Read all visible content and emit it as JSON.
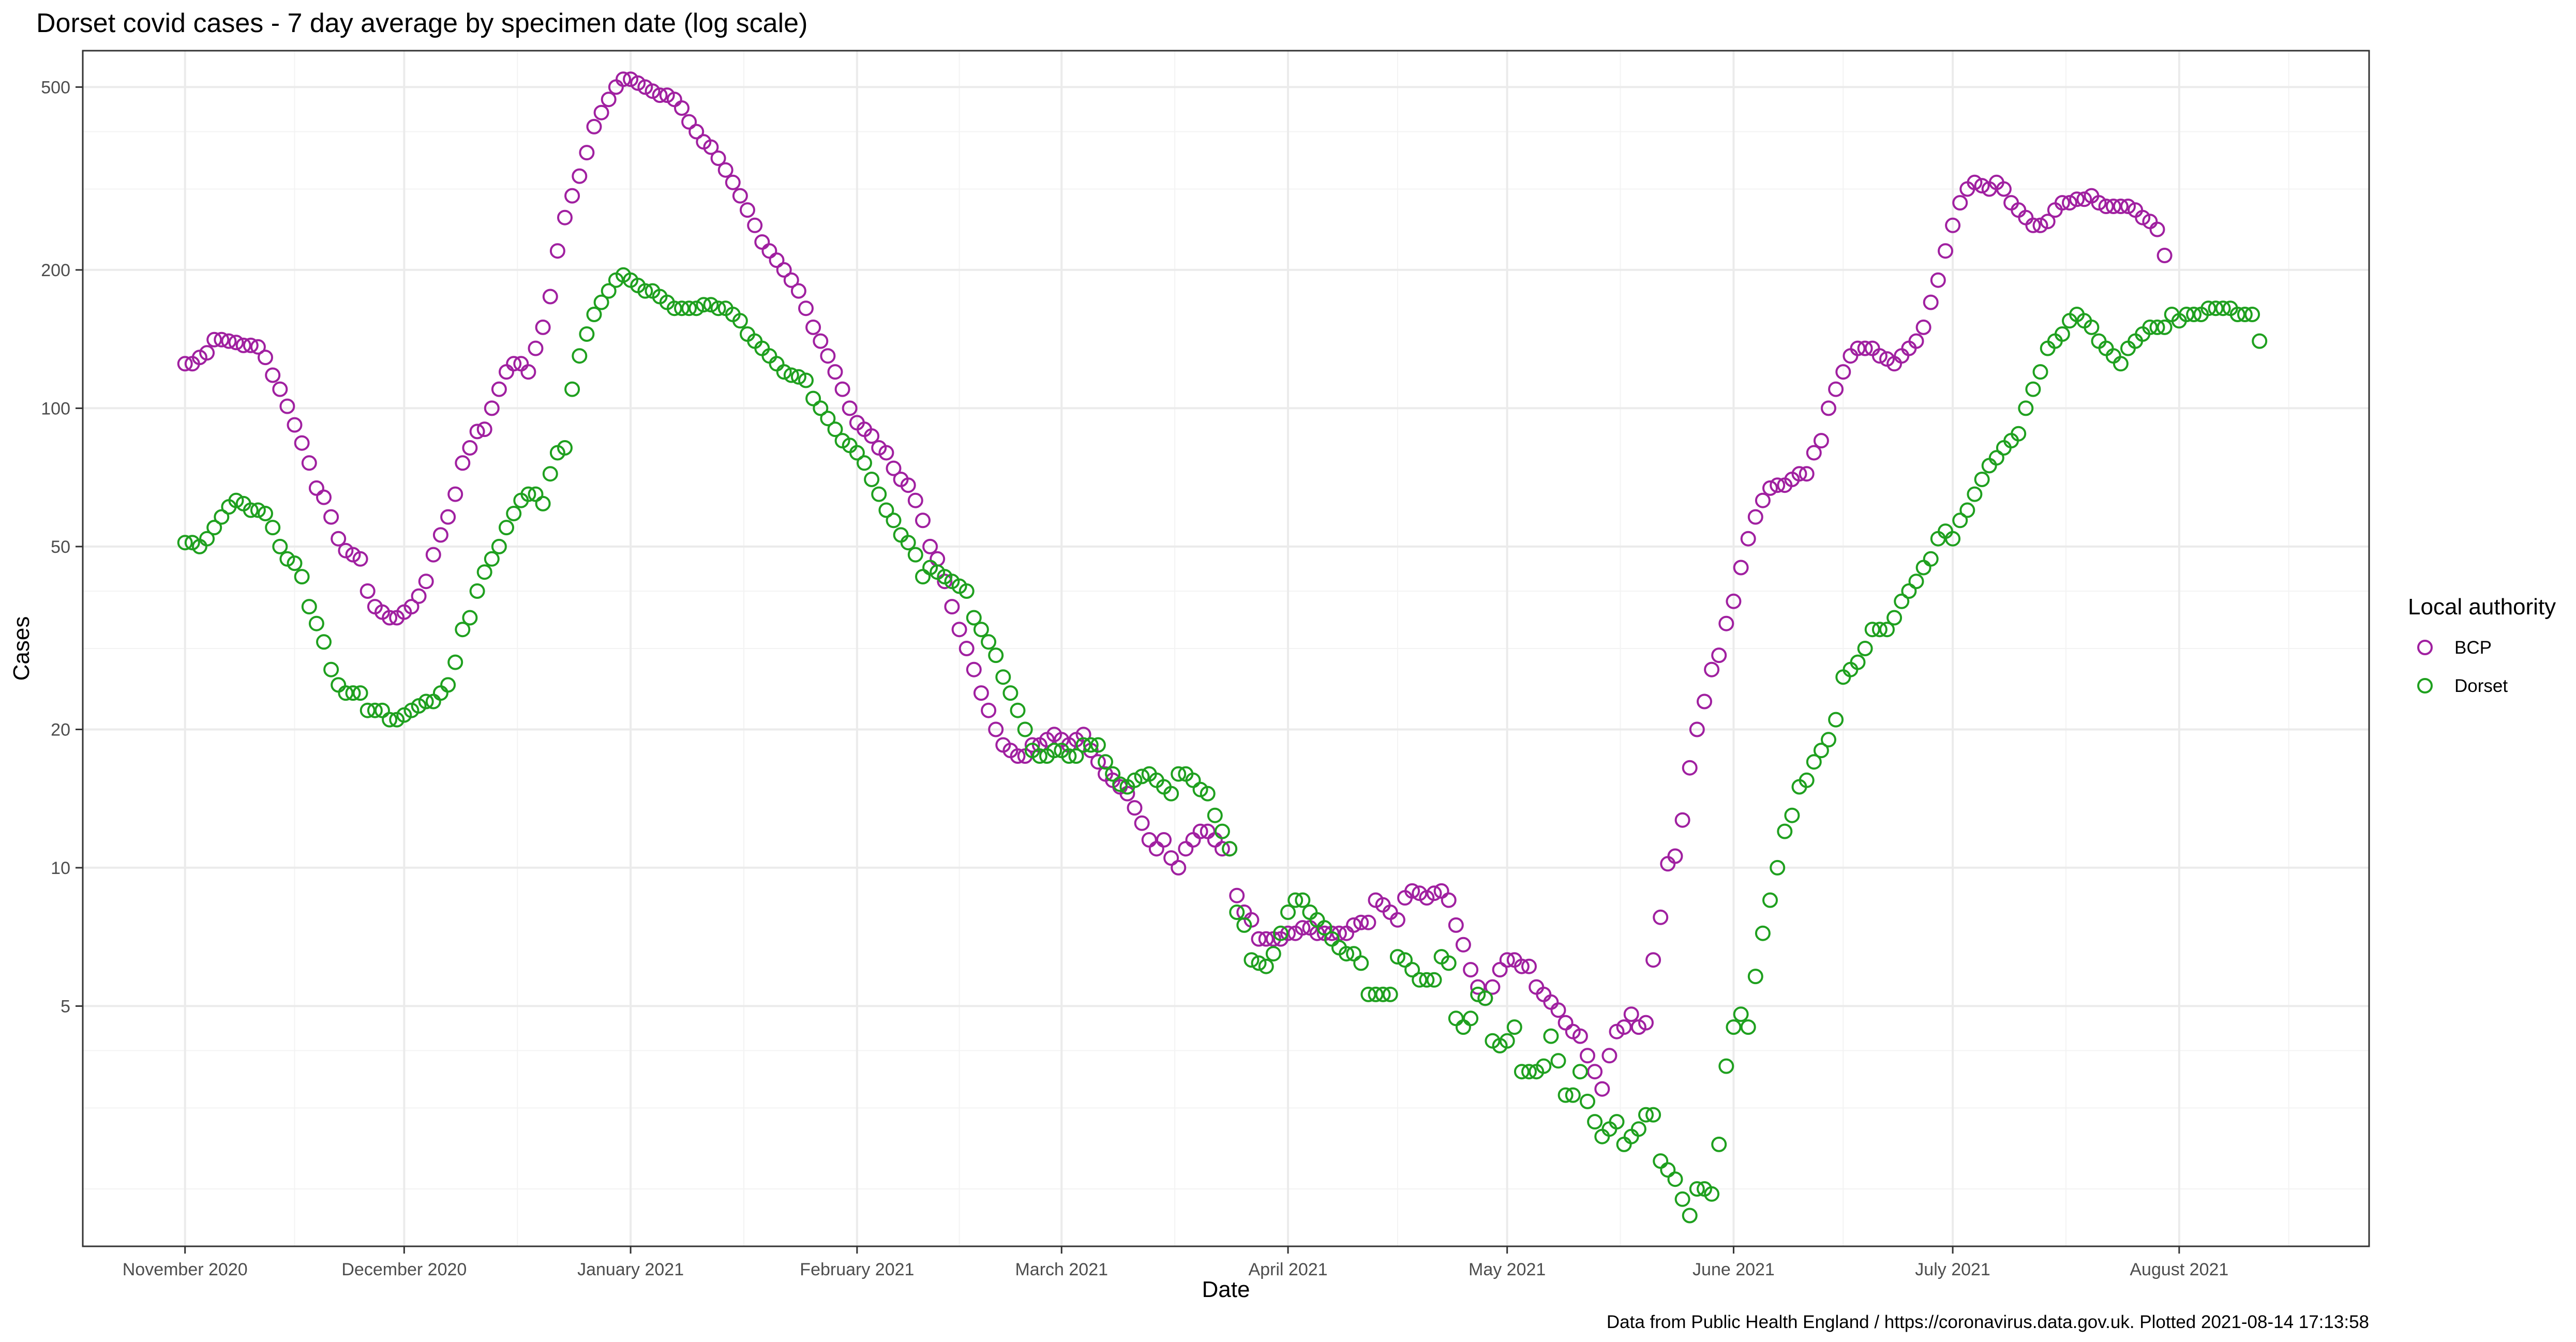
{
  "colors": {
    "BCP": "#A020A0",
    "Dorset": "#1FA01F",
    "grid_major": "#ebebeb",
    "grid_minor": "#f3f3f3",
    "panel_border": "#333333",
    "tick_text": "#4d4d4d"
  },
  "chart_data": {
    "type": "scatter",
    "title": "Dorset covid cases - 7 day average by specimen date (log scale)",
    "xlabel": "Date",
    "ylabel": "Cases",
    "caption": "Data from Public Health England / https://coronavirus.data.gov.uk. Plotted 2021-08-14 17:13:58",
    "y_scale": "log",
    "ylim": [
      1.5,
      600
    ],
    "xlim": [
      "2020-10-18",
      "2021-08-27"
    ],
    "grid": true,
    "legend_position": "right",
    "legend_title": "Local authority",
    "x_ticks": [
      {
        "date": "2020-11-01",
        "label": "November 2020"
      },
      {
        "date": "2020-12-01",
        "label": "December 2020"
      },
      {
        "date": "2021-01-01",
        "label": "January 2021"
      },
      {
        "date": "2021-02-01",
        "label": "February 2021"
      },
      {
        "date": "2021-03-01",
        "label": "March 2021"
      },
      {
        "date": "2021-04-01",
        "label": "April 2021"
      },
      {
        "date": "2021-05-01",
        "label": "May 2021"
      },
      {
        "date": "2021-06-01",
        "label": "June 2021"
      },
      {
        "date": "2021-07-01",
        "label": "July 2021"
      },
      {
        "date": "2021-08-01",
        "label": "August 2021"
      }
    ],
    "y_ticks": [
      {
        "value": 5,
        "label": "5"
      },
      {
        "value": 10,
        "label": "10"
      },
      {
        "value": 20,
        "label": "20"
      },
      {
        "value": 50,
        "label": "50"
      },
      {
        "value": 100,
        "label": "100"
      },
      {
        "value": 200,
        "label": "200"
      },
      {
        "value": 500,
        "label": "500"
      }
    ],
    "y_minor_ticks": [
      2,
      3,
      4,
      30,
      40,
      300,
      400
    ],
    "x_start": "2020-11-01",
    "series": [
      {
        "name": "BCP",
        "values": [
          125,
          125,
          129,
          132,
          141,
          141,
          140,
          139,
          137,
          137,
          136,
          129,
          118,
          110,
          101,
          92,
          84,
          76,
          67,
          64,
          58,
          52,
          49,
          48,
          47,
          40,
          37,
          36,
          35,
          35,
          36,
          37,
          39,
          42,
          48,
          53,
          58,
          65,
          76,
          82,
          89,
          90,
          100,
          110,
          120,
          125,
          125,
          120,
          135,
          150,
          175,
          220,
          260,
          290,
          320,
          360,
          410,
          440,
          470,
          500,
          520,
          520,
          510,
          500,
          490,
          480,
          480,
          470,
          450,
          420,
          400,
          380,
          370,
          350,
          330,
          310,
          290,
          270,
          250,
          230,
          220,
          210,
          200,
          190,
          180,
          165,
          150,
          140,
          130,
          120,
          110,
          100,
          93,
          90,
          87,
          82,
          80,
          74,
          70,
          68,
          63,
          57,
          50,
          47,
          42,
          37,
          33,
          30,
          27,
          24,
          22,
          20,
          18.5,
          18,
          17.5,
          17.5,
          18.5,
          18.5,
          19,
          19.5,
          19,
          18.5,
          19,
          19.5,
          18,
          17,
          16,
          15.5,
          15,
          14.5,
          13.5,
          12.5,
          11.5,
          11,
          11.5,
          10.5,
          10,
          11,
          11.5,
          12,
          12,
          11.5,
          11,
          11,
          8.7,
          8,
          7.7,
          7,
          7,
          7,
          7,
          7.2,
          7.2,
          7.4,
          7.4,
          7.2,
          7.2,
          7.2,
          7.2,
          7.2,
          7.5,
          7.6,
          7.6,
          8.5,
          8.3,
          8,
          7.7,
          8.6,
          8.9,
          8.8,
          8.6,
          8.8,
          8.9,
          8.5,
          7.5,
          6.8,
          6,
          5.5,
          5.2,
          5.5,
          6,
          6.3,
          6.3,
          6.1,
          6.1,
          5.5,
          5.3,
          5.1,
          4.9,
          4.6,
          4.4,
          4.3,
          3.9,
          3.6,
          3.3,
          3.9,
          4.4,
          4.5,
          4.8,
          4.5,
          4.6,
          6.3,
          7.8,
          10.2,
          10.6,
          12.7,
          16.5,
          20,
          23,
          27,
          29,
          34,
          38,
          45,
          52,
          58,
          63,
          67,
          68,
          68,
          70,
          72,
          72,
          80,
          85,
          100,
          110,
          120,
          130,
          135,
          135,
          135,
          130,
          128,
          125,
          130,
          135,
          140,
          150,
          170,
          190,
          220,
          250,
          280,
          300,
          310,
          305,
          300,
          310,
          300,
          280,
          270,
          260,
          250,
          250,
          255,
          270,
          280,
          280,
          285,
          285,
          290,
          280,
          275,
          275,
          275,
          275,
          270,
          260,
          255,
          245,
          215
        ]
      },
      {
        "name": "Dorset",
        "values": [
          51,
          51,
          50,
          52,
          55,
          58,
          61,
          63,
          62,
          60,
          60,
          59,
          55,
          50,
          47,
          46,
          43,
          37,
          34,
          31,
          27,
          25,
          24,
          24,
          24,
          22,
          22,
          22,
          21,
          21,
          21.5,
          22,
          22.5,
          23,
          23,
          24,
          25,
          28,
          33,
          35,
          40,
          44,
          47,
          50,
          55,
          59,
          63,
          65,
          65,
          62,
          72,
          80,
          82,
          110,
          130,
          145,
          160,
          170,
          180,
          190,
          195,
          190,
          185,
          180,
          180,
          175,
          170,
          165,
          165,
          165,
          165,
          168,
          168,
          165,
          165,
          160,
          155,
          145,
          140,
          135,
          130,
          125,
          120,
          118,
          117,
          115,
          105,
          100,
          95,
          90,
          85,
          83,
          80,
          76,
          70,
          65,
          60,
          57,
          53,
          51,
          48,
          43,
          45,
          44,
          43,
          42,
          41,
          40,
          35,
          33,
          31,
          29,
          26,
          24,
          22,
          20,
          18,
          17.5,
          17.5,
          18,
          18,
          17.5,
          17.5,
          18.5,
          18.5,
          18.5,
          17,
          16,
          15.2,
          15,
          15.5,
          15.8,
          16,
          15.5,
          15,
          14.5,
          16,
          16,
          15.5,
          14.8,
          14.5,
          13,
          12,
          11,
          8,
          7.5,
          6.3,
          6.2,
          6.1,
          6.5,
          7.2,
          8,
          8.5,
          8.5,
          8,
          7.7,
          7.4,
          7,
          6.7,
          6.5,
          6.5,
          6.2,
          5.3,
          5.3,
          5.3,
          5.3,
          6.4,
          6.3,
          6,
          5.7,
          5.7,
          5.7,
          6.4,
          6.2,
          4.7,
          4.5,
          4.7,
          5.3,
          5.2,
          4.2,
          4.1,
          4.2,
          4.5,
          3.6,
          3.6,
          3.6,
          3.7,
          4.3,
          3.8,
          3.2,
          3.2,
          3.6,
          3.1,
          2.8,
          2.6,
          2.7,
          2.8,
          2.5,
          2.6,
          2.7,
          2.9,
          2.9,
          2.3,
          2.2,
          2.1,
          1.9,
          1.75,
          2,
          2,
          1.95,
          2.5,
          3.7,
          4.5,
          4.8,
          4.5,
          5.8,
          7.2,
          8.5,
          10,
          12,
          13,
          15,
          15.5,
          17,
          18,
          19,
          21,
          26,
          27,
          28,
          30,
          33,
          33,
          33,
          35,
          38,
          40,
          42,
          45,
          47,
          52,
          54,
          52,
          57,
          60,
          65,
          70,
          75,
          78,
          82,
          85,
          88,
          100,
          110,
          120,
          135,
          140,
          145,
          155,
          160,
          155,
          150,
          140,
          135,
          130,
          125,
          135,
          140,
          145,
          150,
          150,
          150,
          160,
          155,
          160,
          160,
          160,
          165,
          165,
          165,
          165,
          160,
          160,
          160,
          140
        ]
      }
    ]
  }
}
